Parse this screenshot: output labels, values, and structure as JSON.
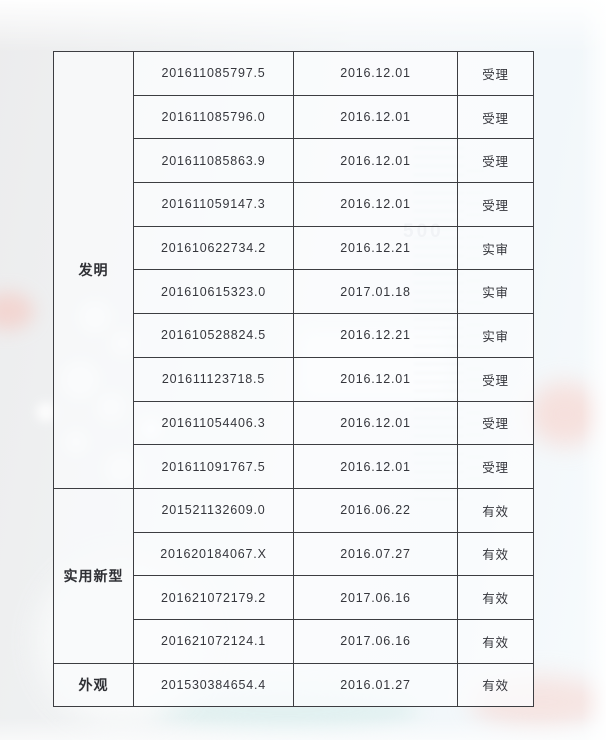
{
  "watermark": "500",
  "table": {
    "groups": [
      {
        "category": "发明",
        "rows": [
          {
            "number": "201611085797.5",
            "date": "2016.12.01",
            "status": "受理"
          },
          {
            "number": "201611085796.0",
            "date": "2016.12.01",
            "status": "受理"
          },
          {
            "number": "201611085863.9",
            "date": "2016.12.01",
            "status": "受理"
          },
          {
            "number": "201611059147.3",
            "date": "2016.12.01",
            "status": "受理"
          },
          {
            "number": "201610622734.2",
            "date": "2016.12.21",
            "status": "实审"
          },
          {
            "number": "201610615323.0",
            "date": "2017.01.18",
            "status": "实审"
          },
          {
            "number": "201610528824.5",
            "date": "2016.12.21",
            "status": "实审"
          },
          {
            "number": "201611123718.5",
            "date": "2016.12.01",
            "status": "受理"
          },
          {
            "number": "201611054406.3",
            "date": "2016.12.01",
            "status": "受理"
          },
          {
            "number": "201611091767.5",
            "date": "2016.12.01",
            "status": "受理"
          }
        ]
      },
      {
        "category": "实用新型",
        "rows": [
          {
            "number": "201521132609.0",
            "date": "2016.06.22",
            "status": "有效"
          },
          {
            "number": "201620184067.X",
            "date": "2016.07.27",
            "status": "有效"
          },
          {
            "number": "201621072179.2",
            "date": "2017.06.16",
            "status": "有效"
          },
          {
            "number": "201621072124.1",
            "date": "2017.06.16",
            "status": "有效"
          }
        ]
      },
      {
        "category": "外观",
        "rows": [
          {
            "number": "201530384654.4",
            "date": "2016.01.27",
            "status": "有效"
          }
        ]
      }
    ]
  }
}
